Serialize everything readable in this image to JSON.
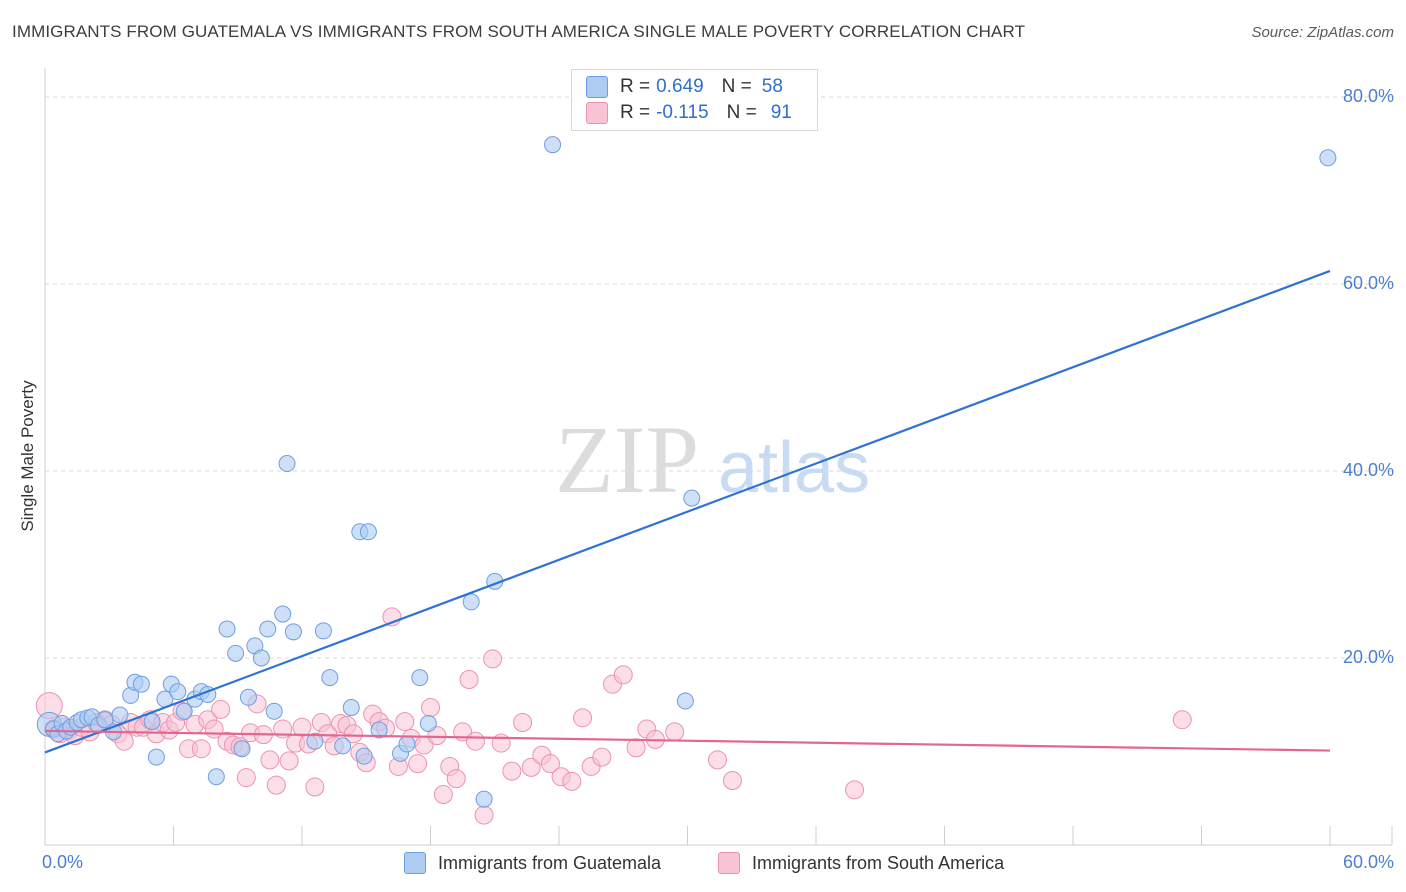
{
  "header": {
    "title": "IMMIGRANTS FROM GUATEMALA VS IMMIGRANTS FROM SOUTH AMERICA SINGLE MALE POVERTY CORRELATION CHART",
    "source": "Source: ZipAtlas.com"
  },
  "watermark": {
    "zip": "ZIP",
    "atlas": "atlas"
  },
  "stats": [
    {
      "r_label": "R =",
      "r_value": "0.649",
      "n_label": "N =",
      "n_value": "58"
    },
    {
      "r_label": "R =",
      "r_value": "-0.115",
      "n_label": "N =",
      "n_value": "91"
    }
  ],
  "colors": {
    "guatemala_fill": "#aecbf2",
    "guatemala_stroke": "#6f9ee0",
    "guatemala_line": "#2f72d2",
    "south_america_fill": "#f7c3d5",
    "south_america_stroke": "#ec92b2",
    "south_america_line": "#e2668f",
    "tick_label": "#4b7fd1",
    "grid": "#d9d9d9"
  },
  "chart_data": {
    "type": "scatter",
    "title": "IMMIGRANTS FROM GUATEMALA VS IMMIGRANTS FROM SOUTH AMERICA SINGLE MALE POVERTY CORRELATION CHART",
    "xlabel": "",
    "ylabel": "Single Male Poverty",
    "xlim": [
      0,
      60
    ],
    "ylim": [
      0,
      82
    ],
    "x_tick_labels": [
      "0.0%",
      "60.0%"
    ],
    "y_ticks": [
      20,
      40,
      60,
      80
    ],
    "y_tick_labels": [
      "20.0%",
      "40.0%",
      "60.0%",
      "80.0%"
    ],
    "grid": true,
    "legend_position": "bottom",
    "series": [
      {
        "name": "Immigrants from Guatemala",
        "r": 0.649,
        "n": 58,
        "trend": {
          "x": [
            0,
            60
          ],
          "y": [
            9.9,
            61.4
          ]
        },
        "points": [
          [
            0.2,
            12.9
          ],
          [
            0.4,
            12.4
          ],
          [
            0.6,
            11.9
          ],
          [
            0.8,
            13.0
          ],
          [
            1.0,
            12.2
          ],
          [
            1.2,
            12.6
          ],
          [
            1.5,
            13.1
          ],
          [
            1.7,
            13.4
          ],
          [
            2.0,
            13.6
          ],
          [
            2.2,
            13.7
          ],
          [
            2.5,
            12.8
          ],
          [
            2.8,
            13.4
          ],
          [
            3.2,
            12.1
          ],
          [
            3.5,
            13.9
          ],
          [
            4.0,
            16.0
          ],
          [
            4.2,
            17.4
          ],
          [
            4.5,
            17.2
          ],
          [
            5.0,
            13.2
          ],
          [
            5.2,
            9.4
          ],
          [
            5.6,
            15.6
          ],
          [
            5.9,
            17.2
          ],
          [
            6.2,
            16.4
          ],
          [
            6.5,
            14.3
          ],
          [
            7.0,
            15.6
          ],
          [
            7.3,
            16.4
          ],
          [
            7.6,
            16.1
          ],
          [
            8.0,
            7.3
          ],
          [
            8.5,
            23.1
          ],
          [
            8.9,
            20.5
          ],
          [
            9.2,
            10.3
          ],
          [
            9.5,
            15.8
          ],
          [
            9.8,
            21.3
          ],
          [
            10.1,
            20.0
          ],
          [
            10.4,
            23.1
          ],
          [
            10.7,
            14.3
          ],
          [
            11.1,
            24.7
          ],
          [
            11.3,
            40.8
          ],
          [
            11.6,
            22.8
          ],
          [
            12.6,
            11.1
          ],
          [
            13.0,
            22.9
          ],
          [
            13.3,
            17.9
          ],
          [
            13.9,
            10.6
          ],
          [
            14.3,
            14.7
          ],
          [
            14.7,
            33.5
          ],
          [
            15.1,
            33.5
          ],
          [
            14.9,
            9.5
          ],
          [
            15.6,
            12.3
          ],
          [
            16.6,
            9.8
          ],
          [
            16.9,
            10.8
          ],
          [
            17.5,
            17.9
          ],
          [
            17.9,
            13.0
          ],
          [
            19.9,
            26.0
          ],
          [
            20.5,
            4.9
          ],
          [
            21.0,
            28.2
          ],
          [
            23.7,
            74.9
          ],
          [
            29.9,
            15.4
          ],
          [
            30.2,
            37.1
          ],
          [
            59.9,
            73.5
          ]
        ]
      },
      {
        "name": "Immigrants from South America",
        "r": -0.115,
        "n": 91,
        "trend": {
          "x": [
            0,
            60
          ],
          "y": [
            12.2,
            10.1
          ]
        },
        "points": [
          [
            0.2,
            14.9
          ],
          [
            0.4,
            12.4
          ],
          [
            0.7,
            11.9
          ],
          [
            0.9,
            12.6
          ],
          [
            1.1,
            12.2
          ],
          [
            1.4,
            11.7
          ],
          [
            1.7,
            12.6
          ],
          [
            2.1,
            12.1
          ],
          [
            2.4,
            13.1
          ],
          [
            2.8,
            13.4
          ],
          [
            3.1,
            12.9
          ],
          [
            3.4,
            11.9
          ],
          [
            3.7,
            11.1
          ],
          [
            4.0,
            13.1
          ],
          [
            4.3,
            12.6
          ],
          [
            4.6,
            12.6
          ],
          [
            4.9,
            13.4
          ],
          [
            5.2,
            11.9
          ],
          [
            5.5,
            13.1
          ],
          [
            5.8,
            12.3
          ],
          [
            6.1,
            13.1
          ],
          [
            6.4,
            14.3
          ],
          [
            6.7,
            10.3
          ],
          [
            7.0,
            12.9
          ],
          [
            7.3,
            10.3
          ],
          [
            7.6,
            13.4
          ],
          [
            7.9,
            12.4
          ],
          [
            8.2,
            14.5
          ],
          [
            8.5,
            11.1
          ],
          [
            8.8,
            10.7
          ],
          [
            9.1,
            10.5
          ],
          [
            9.4,
            7.2
          ],
          [
            9.6,
            12.0
          ],
          [
            9.9,
            15.1
          ],
          [
            10.2,
            11.8
          ],
          [
            10.5,
            9.1
          ],
          [
            10.8,
            6.4
          ],
          [
            11.1,
            12.4
          ],
          [
            11.4,
            9.0
          ],
          [
            11.7,
            10.9
          ],
          [
            12.0,
            12.6
          ],
          [
            12.3,
            10.8
          ],
          [
            12.6,
            6.2
          ],
          [
            12.9,
            13.1
          ],
          [
            13.2,
            11.9
          ],
          [
            13.5,
            10.6
          ],
          [
            13.8,
            13.0
          ],
          [
            14.1,
            12.8
          ],
          [
            14.4,
            11.9
          ],
          [
            14.7,
            9.9
          ],
          [
            15.0,
            8.8
          ],
          [
            15.3,
            14.0
          ],
          [
            15.6,
            13.2
          ],
          [
            15.9,
            12.5
          ],
          [
            16.2,
            24.4
          ],
          [
            16.5,
            8.4
          ],
          [
            16.8,
            13.2
          ],
          [
            17.1,
            11.4
          ],
          [
            17.4,
            8.7
          ],
          [
            17.7,
            10.7
          ],
          [
            18.0,
            14.7
          ],
          [
            18.3,
            11.7
          ],
          [
            18.6,
            5.4
          ],
          [
            18.9,
            8.4
          ],
          [
            19.2,
            7.1
          ],
          [
            19.5,
            12.1
          ],
          [
            19.8,
            17.7
          ],
          [
            20.1,
            11.1
          ],
          [
            20.5,
            3.2
          ],
          [
            20.9,
            19.9
          ],
          [
            21.3,
            10.9
          ],
          [
            21.8,
            7.9
          ],
          [
            22.3,
            13.1
          ],
          [
            22.7,
            8.3
          ],
          [
            23.2,
            9.6
          ],
          [
            23.6,
            8.7
          ],
          [
            24.1,
            7.3
          ],
          [
            24.6,
            6.8
          ],
          [
            25.1,
            13.6
          ],
          [
            25.5,
            8.4
          ],
          [
            26.0,
            9.4
          ],
          [
            26.5,
            17.2
          ],
          [
            27.0,
            18.2
          ],
          [
            27.6,
            10.4
          ],
          [
            28.1,
            12.4
          ],
          [
            28.5,
            11.3
          ],
          [
            29.4,
            12.1
          ],
          [
            31.4,
            9.1
          ],
          [
            32.1,
            6.9
          ],
          [
            37.8,
            5.9
          ],
          [
            53.1,
            13.4
          ]
        ]
      }
    ]
  },
  "legend": {
    "items": [
      "Immigrants from Guatemala",
      "Immigrants from South America"
    ]
  }
}
